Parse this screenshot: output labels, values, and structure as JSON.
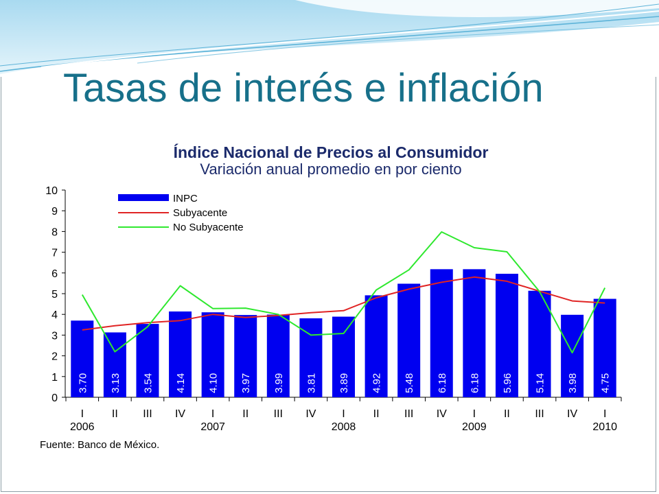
{
  "slide": {
    "title": "Tasas de interés e inflación",
    "title_color": "#17708a"
  },
  "header": {
    "light_color": "#e4f4fb",
    "mid_color": "#a9daf0",
    "line_color": "#5db3d8"
  },
  "chart_data": {
    "type": "bar",
    "title": "Índice Nacional de Precios al Consumidor",
    "subtitle": "Variación anual promedio en por ciento",
    "title_color": "#1b2a6b",
    "xlabel": "",
    "ylabel": "",
    "categories": [
      "I",
      "II",
      "III",
      "IV",
      "I",
      "II",
      "III",
      "IV",
      "I",
      "II",
      "III",
      "IV",
      "I",
      "II",
      "III",
      "IV",
      "I"
    ],
    "year_labels": [
      "2006",
      "",
      "",
      "",
      "2007",
      "",
      "",
      "",
      "2008",
      "",
      "",
      "",
      "2009",
      "",
      "",
      "",
      "2010"
    ],
    "ylim": [
      0,
      10
    ],
    "yticks": [
      0,
      1,
      2,
      3,
      4,
      5,
      6,
      7,
      8,
      9,
      10
    ],
    "grid": false,
    "legend": "top-left",
    "series": [
      {
        "name": "INPC",
        "type": "bar",
        "color": "#0000f0",
        "values": [
          3.7,
          3.13,
          3.54,
          4.14,
          4.1,
          3.97,
          3.99,
          3.81,
          3.89,
          4.92,
          5.48,
          6.18,
          6.18,
          5.96,
          5.14,
          3.98,
          4.75
        ],
        "value_labels": [
          "3.70",
          "3.13",
          "3.54",
          "4.14",
          "4.10",
          "3.97",
          "3.99",
          "3.81",
          "3.89",
          "4.92",
          "5.48",
          "6.18",
          "6.18",
          "5.96",
          "5.14",
          "3.98",
          "4.75"
        ]
      },
      {
        "name": "Subyacente",
        "type": "line",
        "color": "#e02424",
        "values": [
          3.25,
          3.45,
          3.6,
          3.7,
          4.0,
          3.85,
          3.95,
          4.08,
          4.18,
          4.8,
          5.22,
          5.55,
          5.8,
          5.6,
          5.12,
          4.65,
          4.55
        ]
      },
      {
        "name": "No Subyacente",
        "type": "line",
        "color": "#2ee82e",
        "values": [
          4.95,
          2.2,
          3.4,
          5.38,
          4.28,
          4.3,
          4.0,
          3.0,
          3.08,
          5.18,
          6.15,
          7.98,
          7.22,
          7.02,
          5.1,
          2.15,
          5.28
        ]
      }
    ],
    "source": "Fuente: Banco de México."
  }
}
